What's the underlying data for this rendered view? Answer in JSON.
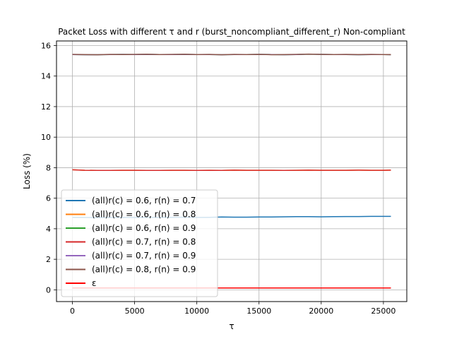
{
  "chart_data": {
    "type": "line",
    "title": "Packet Loss with different τ and r (burst_noncompliant_different_r) Non-compliant",
    "xlabel": "τ",
    "ylabel": "Loss (%)",
    "xlim": [
      -1280,
      26880
    ],
    "ylim": [
      -0.77,
      16.3
    ],
    "xticks": [
      0,
      5000,
      10000,
      15000,
      20000,
      25000
    ],
    "yticks": [
      0,
      2,
      4,
      6,
      8,
      10,
      12,
      14,
      16
    ],
    "grid": true,
    "legend_position": "lower-left",
    "x": [
      0,
      1000,
      2000,
      3000,
      4000,
      5000,
      6000,
      7000,
      8000,
      9000,
      10000,
      11000,
      12000,
      13000,
      14000,
      15000,
      16000,
      17000,
      18000,
      19000,
      20000,
      21000,
      22000,
      23000,
      24000,
      25000,
      25600
    ],
    "series": [
      {
        "name": "(all)r(c) = 0.6, r(n) = 0.7",
        "color": "#1f77b4",
        "values": [
          4.75,
          4.74,
          4.73,
          4.74,
          4.75,
          4.74,
          4.74,
          4.75,
          4.75,
          4.76,
          4.74,
          4.75,
          4.77,
          4.76,
          4.76,
          4.77,
          4.77,
          4.78,
          4.79,
          4.79,
          4.78,
          4.79,
          4.8,
          4.8,
          4.81,
          4.81,
          4.81
        ]
      },
      {
        "name": "(all)r(c) = 0.6, r(n) = 0.8",
        "color": "#ff7f0e",
        "values": [
          7.86,
          7.83,
          7.82,
          7.82,
          7.83,
          7.83,
          7.82,
          7.82,
          7.83,
          7.83,
          7.82,
          7.83,
          7.82,
          7.84,
          7.83,
          7.83,
          7.83,
          7.82,
          7.83,
          7.84,
          7.83,
          7.83,
          7.83,
          7.84,
          7.83,
          7.83,
          7.84
        ]
      },
      {
        "name": "(all)r(c) = 0.6, r(n) = 0.9",
        "color": "#2ca02c",
        "values": [
          15.41,
          15.4,
          15.4,
          15.41,
          15.42,
          15.41,
          15.42,
          15.41,
          15.41,
          15.42,
          15.41,
          15.41,
          15.4,
          15.41,
          15.41,
          15.42,
          15.41,
          15.4,
          15.41,
          15.43,
          15.42,
          15.41,
          15.41,
          15.4,
          15.41,
          15.41,
          15.4
        ]
      },
      {
        "name": "(all)r(c) = 0.7, r(n) = 0.8",
        "color": "#d62728",
        "values": [
          7.86,
          7.83,
          7.82,
          7.82,
          7.83,
          7.83,
          7.82,
          7.82,
          7.83,
          7.83,
          7.82,
          7.83,
          7.82,
          7.84,
          7.83,
          7.83,
          7.83,
          7.82,
          7.83,
          7.84,
          7.83,
          7.83,
          7.83,
          7.84,
          7.83,
          7.83,
          7.84
        ]
      },
      {
        "name": "(all)r(c) = 0.7, r(n) = 0.9",
        "color": "#9467bd",
        "values": [
          15.41,
          15.4,
          15.4,
          15.41,
          15.42,
          15.41,
          15.42,
          15.41,
          15.41,
          15.42,
          15.41,
          15.41,
          15.4,
          15.41,
          15.41,
          15.42,
          15.41,
          15.4,
          15.41,
          15.43,
          15.42,
          15.41,
          15.41,
          15.4,
          15.41,
          15.41,
          15.4
        ]
      },
      {
        "name": "(all)r(c) = 0.8, r(n) = 0.9",
        "color": "#8c564b",
        "values": [
          15.42,
          15.41,
          15.4,
          15.42,
          15.41,
          15.42,
          15.43,
          15.41,
          15.42,
          15.43,
          15.41,
          15.42,
          15.4,
          15.42,
          15.41,
          15.42,
          15.4,
          15.41,
          15.42,
          15.44,
          15.42,
          15.41,
          15.42,
          15.41,
          15.42,
          15.41,
          15.41
        ]
      },
      {
        "name": "ε",
        "color": "#ff0000",
        "values": [
          0.12,
          0.12,
          0.12,
          0.12,
          0.12,
          0.12,
          0.12,
          0.12,
          0.12,
          0.12,
          0.12,
          0.12,
          0.12,
          0.12,
          0.12,
          0.12,
          0.12,
          0.12,
          0.12,
          0.12,
          0.12,
          0.12,
          0.12,
          0.12,
          0.12,
          0.12,
          0.12
        ]
      }
    ]
  }
}
